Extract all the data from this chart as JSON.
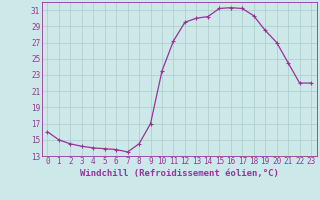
{
  "x": [
    0,
    1,
    2,
    3,
    4,
    5,
    6,
    7,
    8,
    9,
    10,
    11,
    12,
    13,
    14,
    15,
    16,
    17,
    18,
    19,
    20,
    21,
    22,
    23
  ],
  "y": [
    16.0,
    15.0,
    14.5,
    14.2,
    14.0,
    13.9,
    13.8,
    13.5,
    14.5,
    17.0,
    23.5,
    27.2,
    29.5,
    30.0,
    30.2,
    31.2,
    31.3,
    31.2,
    30.3,
    28.5,
    27.0,
    24.5,
    22.0,
    22.0
  ],
  "line_color": "#993399",
  "marker": "+",
  "marker_size": 3,
  "background_color": "#cce8e8",
  "grid_color": "#aacccc",
  "xlabel": "Windchill (Refroidissement éolien,°C)",
  "xlabel_fontsize": 6.5,
  "yticks": [
    13,
    15,
    17,
    19,
    21,
    23,
    25,
    27,
    29,
    31
  ],
  "xlim": [
    -0.5,
    23.5
  ],
  "ylim": [
    13,
    32
  ],
  "tick_fontsize": 5.5,
  "axis_color": "#993399",
  "line_width": 0.9,
  "marker_edge_width": 0.8
}
